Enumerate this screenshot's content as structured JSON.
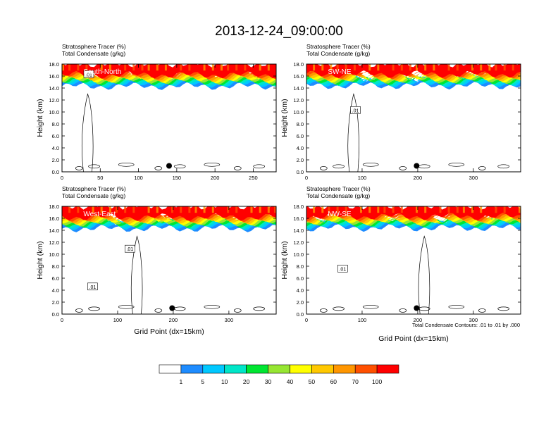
{
  "title": "2013-12-24_09:00:00",
  "panel_header": {
    "line1": "Stratosphere Tracer   (%)",
    "line2": "Total Condensate   (g/kg)"
  },
  "ylabel": "Height (km)",
  "xlabel": "Grid Point (dx=15km)",
  "contour_note": "Total Condensate Contours: .01 to .01 by .000",
  "colorbar": {
    "colors": [
      "#ffffff",
      "#1e8cff",
      "#00c8ff",
      "#00e6c8",
      "#00e632",
      "#96e632",
      "#ffff00",
      "#ffc800",
      "#ff9600",
      "#ff5000",
      "#ff0000"
    ],
    "labels": [
      "1",
      "5",
      "10",
      "20",
      "30",
      "40",
      "50",
      "60",
      "70",
      "100"
    ]
  },
  "chart_data": [
    {
      "type": "heatmap",
      "panel": "South-North",
      "label": "South-North",
      "xlim": [
        0,
        280
      ],
      "xticks": [
        "0",
        "50",
        "100",
        "150",
        "200",
        "250"
      ],
      "ylim": [
        0,
        18
      ],
      "yticks": [
        "0.0",
        "2.0",
        "4.0",
        "6.0",
        "8.0",
        "10.0",
        "12.0",
        "14.0",
        "16.0",
        "18.0"
      ],
      "tropopause_km": 15.2,
      "marker": {
        "x": 140,
        "y": 1.0
      },
      "contour_labels": [
        {
          "text": ".01",
          "x": 35,
          "y": 16.2
        }
      ]
    },
    {
      "type": "heatmap",
      "panel": "SW-NE",
      "label": "SW-NE",
      "xlim": [
        0,
        385
      ],
      "xticks": [
        "0",
        "100",
        "200",
        "300"
      ],
      "ylim": [
        0,
        18
      ],
      "yticks": [
        "0.0",
        "2.0",
        "4.0",
        "6.0",
        "8.0",
        "10.0",
        "12.0",
        "14.0",
        "16.0",
        "18.0"
      ],
      "tropopause_km": 15.3,
      "marker": {
        "x": 198,
        "y": 1.0
      },
      "contour_labels": [
        {
          "text": ".01",
          "x": 88,
          "y": 10.2
        }
      ]
    },
    {
      "type": "heatmap",
      "panel": "West-East",
      "label": "West-East",
      "xlim": [
        0,
        385
      ],
      "xticks": [
        "0",
        "100",
        "200",
        "300"
      ],
      "ylim": [
        0,
        18
      ],
      "yticks": [
        "0.0",
        "2.0",
        "4.0",
        "6.0",
        "8.0",
        "10.0",
        "12.0",
        "14.0",
        "16.0",
        "18.0"
      ],
      "tropopause_km": 15.2,
      "marker": {
        "x": 198,
        "y": 1.0
      },
      "contour_labels": [
        {
          "text": ".01",
          "x": 122,
          "y": 10.8
        },
        {
          "text": ".01",
          "x": 55,
          "y": 4.5
        }
      ]
    },
    {
      "type": "heatmap",
      "panel": "NW-SE",
      "label": "NW-SE",
      "xlim": [
        0,
        385
      ],
      "xticks": [
        "0",
        "100",
        "200",
        "300"
      ],
      "ylim": [
        0,
        18
      ],
      "yticks": [
        "0.0",
        "2.0",
        "4.0",
        "6.0",
        "8.0",
        "10.0",
        "12.0",
        "14.0",
        "16.0",
        "18.0"
      ],
      "tropopause_km": 15.3,
      "marker": {
        "x": 198,
        "y": 1.0
      },
      "contour_labels": [
        {
          "text": ".01",
          "x": 65,
          "y": 7.5
        }
      ]
    }
  ]
}
